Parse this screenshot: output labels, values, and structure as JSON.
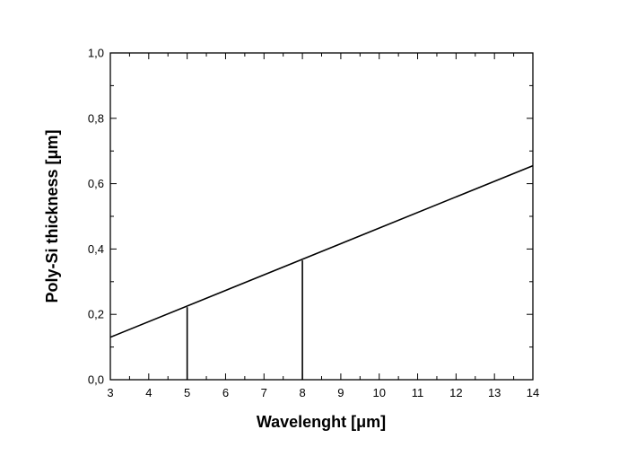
{
  "chart_data": {
    "type": "line",
    "xlabel": "Wavelenght [μm]",
    "ylabel": "Poly-Si thickness [μm]",
    "xlim": [
      3,
      14
    ],
    "ylim": [
      0,
      1
    ],
    "x_ticks": [
      3,
      4,
      5,
      6,
      7,
      8,
      9,
      10,
      11,
      12,
      13,
      14
    ],
    "x_tick_labels": [
      "3",
      "4",
      "5",
      "6",
      "7",
      "8",
      "9",
      "10",
      "11",
      "12",
      "13",
      "14"
    ],
    "y_ticks": [
      0,
      0.2,
      0.4,
      0.6,
      0.8,
      1.0
    ],
    "y_tick_labels": [
      "0,0",
      "0,2",
      "0,4",
      "0,6",
      "0,8",
      "1,0"
    ],
    "series": [
      {
        "x": [
          3,
          14
        ],
        "y": [
          0.13,
          0.655
        ]
      }
    ],
    "markers": [
      {
        "x": 5,
        "y": 0.222
      },
      {
        "x": 8,
        "y": 0.365
      }
    ],
    "grid": false,
    "legend": "none",
    "color": "#000000"
  }
}
